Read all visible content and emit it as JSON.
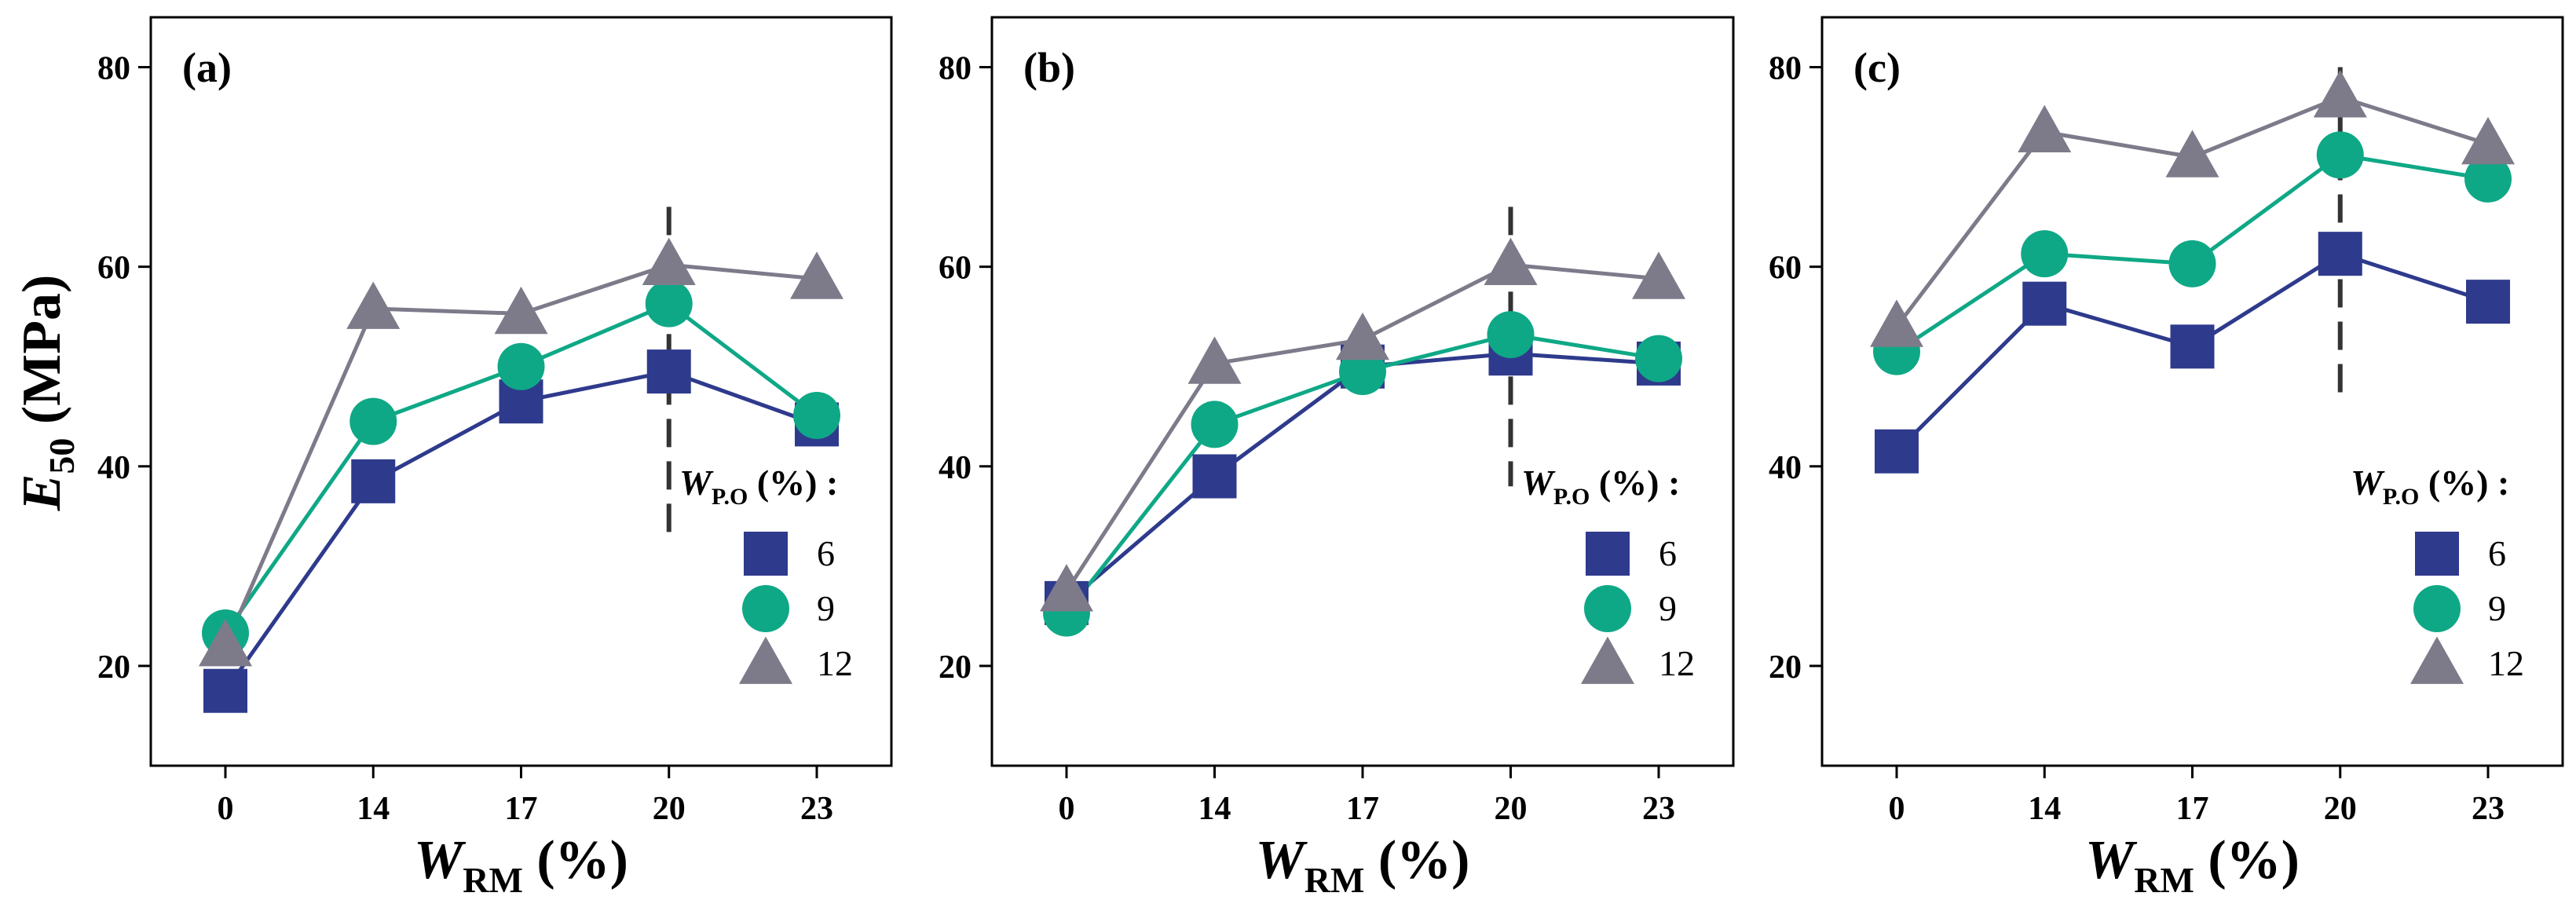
{
  "figure": {
    "y_axis_title": {
      "main": "E",
      "sub": "50",
      "unit": "(MPa)"
    },
    "x_axis_title": {
      "main": "W",
      "sub": "RM",
      "unit": "(%)"
    },
    "legend_title": {
      "main": "W",
      "sub": "P.O",
      "unit": "(%) :"
    }
  },
  "colors": {
    "s6": "#2e3a8c",
    "s9": "#0fa886",
    "s12": "#7d7b8a",
    "axis": "#000000",
    "dashed_line": "#333333"
  },
  "chart_data": [
    {
      "type": "line",
      "panel_label": "(a)",
      "categories": [
        "0",
        "14",
        "17",
        "20",
        "23"
      ],
      "ylim": [
        10,
        85
      ],
      "yticks": [
        20,
        40,
        60,
        80
      ],
      "dashed_marker_category": "20",
      "dashed_range": [
        33,
        66
      ],
      "series": [
        {
          "name": "6",
          "marker": "square",
          "values": [
            17.5,
            38.5,
            46.5,
            49.5,
            44.2
          ]
        },
        {
          "name": "9",
          "marker": "circle",
          "values": [
            23.3,
            44.5,
            50.0,
            56.3,
            45.1
          ]
        },
        {
          "name": "12",
          "marker": "triangle",
          "values": [
            22.0,
            55.8,
            55.3,
            60.2,
            58.8
          ]
        }
      ],
      "legend_position": "bottom-right"
    },
    {
      "type": "line",
      "panel_label": "(b)",
      "categories": [
        "0",
        "14",
        "17",
        "20",
        "23"
      ],
      "ylim": [
        10,
        85
      ],
      "yticks": [
        20,
        40,
        60,
        80
      ],
      "dashed_marker_category": "20",
      "dashed_range": [
        38,
        66
      ],
      "series": [
        {
          "name": "6",
          "marker": "square",
          "values": [
            26.3,
            39.0,
            50.0,
            51.3,
            50.3
          ]
        },
        {
          "name": "9",
          "marker": "circle",
          "values": [
            25.3,
            44.2,
            49.5,
            53.2,
            50.8
          ]
        },
        {
          "name": "12",
          "marker": "triangle",
          "values": [
            27.5,
            50.3,
            52.7,
            60.2,
            58.8
          ]
        }
      ],
      "legend_position": "bottom-right"
    },
    {
      "type": "line",
      "panel_label": "(c)",
      "categories": [
        "0",
        "14",
        "17",
        "20",
        "23"
      ],
      "ylim": [
        10,
        85
      ],
      "yticks": [
        20,
        40,
        60,
        80
      ],
      "dashed_marker_category": "20",
      "dashed_range": [
        47,
        80
      ],
      "series": [
        {
          "name": "6",
          "marker": "square",
          "values": [
            41.5,
            56.3,
            52.0,
            61.3,
            56.5
          ]
        },
        {
          "name": "9",
          "marker": "circle",
          "values": [
            51.5,
            61.3,
            60.3,
            71.2,
            68.8
          ]
        },
        {
          "name": "12",
          "marker": "triangle",
          "values": [
            54.0,
            73.5,
            71.0,
            77.0,
            72.3
          ]
        }
      ],
      "legend_position": "bottom-right"
    }
  ]
}
